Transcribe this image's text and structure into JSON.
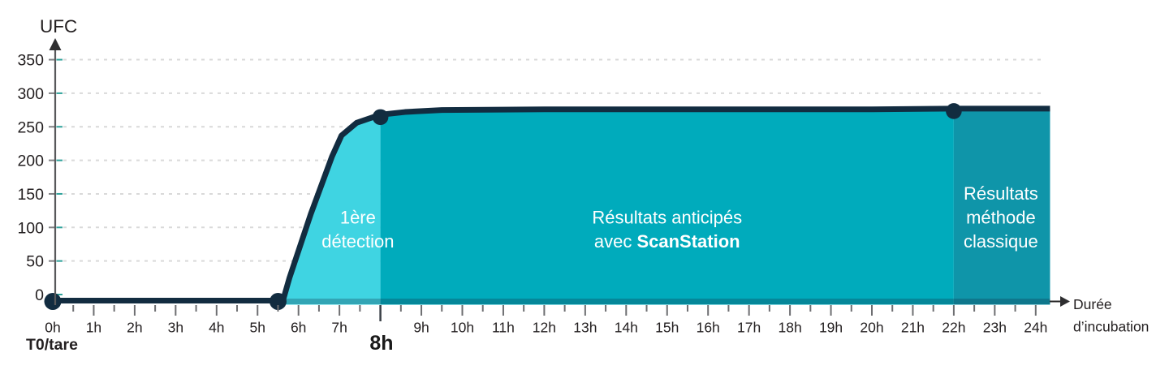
{
  "chart_data": {
    "type": "area",
    "ylabel": "UFC",
    "xlabel_line1": "Durée",
    "xlabel_line2": "d’incubation",
    "origin_label": "T0/tare",
    "detection_time_label": "8h",
    "detection_hour": 8,
    "y_ticks": [
      0,
      50,
      100,
      150,
      200,
      250,
      300,
      350
    ],
    "ylim": [
      0,
      350
    ],
    "xlim_hours": [
      0,
      24.35
    ],
    "x_tick_labels": [
      "0h",
      "1h",
      "2h",
      "3h",
      "4h",
      "5h",
      "6h",
      "7h",
      "8h",
      "9h",
      "10h",
      "11h",
      "12h",
      "13h",
      "14h",
      "15h",
      "16h",
      "17h",
      "18h",
      "19h",
      "20h",
      "21h",
      "22h",
      "23h",
      "24h"
    ],
    "grid": "dashed-horizontal",
    "curve_points": [
      [
        0,
        0
      ],
      [
        5.5,
        0
      ],
      [
        5.62,
        0
      ],
      [
        5.78,
        25
      ],
      [
        6.3,
        120
      ],
      [
        6.82,
        206
      ],
      [
        7.05,
        237
      ],
      [
        7.42,
        256
      ],
      [
        8,
        268
      ],
      [
        8.6,
        272
      ],
      [
        9.5,
        275
      ],
      [
        12,
        276
      ],
      [
        16,
        276
      ],
      [
        20,
        276
      ],
      [
        22,
        277
      ],
      [
        23.2,
        277
      ],
      [
        24.35,
        277
      ]
    ],
    "marked_points": [
      [
        0,
        0
      ],
      [
        5.5,
        0
      ],
      [
        8,
        268
      ],
      [
        22,
        277
      ]
    ],
    "regions": [
      {
        "id": "first-detection",
        "from_hour": 5.55,
        "to_hour": 8,
        "fill": "#3fd4e2",
        "label_center_hour": 7.45,
        "label_lines": [
          [
            {
              "text": "1ère",
              "bold": false
            }
          ],
          [
            {
              "text": "détection",
              "bold": false
            }
          ]
        ]
      },
      {
        "id": "scanstation-anticipated",
        "from_hour": 8,
        "to_hour": 22,
        "fill": "#00abbc",
        "label_center_hour": 15,
        "label_lines": [
          [
            {
              "text": "Résultats anticipés",
              "bold": false
            }
          ],
          [
            {
              "text": "avec ",
              "bold": false
            },
            {
              "text": "ScanStation",
              "bold": true
            }
          ]
        ]
      },
      {
        "id": "classic-method",
        "from_hour": 22,
        "to_hour": 24.35,
        "fill": "#0f95a9",
        "label_center_hour": 23.15,
        "label_lines": [
          [
            {
              "text": "Résultats",
              "bold": false
            }
          ],
          [
            {
              "text": "méthode",
              "bold": false
            }
          ],
          [
            {
              "text": "classique",
              "bold": false
            }
          ]
        ]
      }
    ],
    "colors": {
      "curve": "#122c40",
      "first_detection_fill": "#3fd4e2",
      "scanstation_fill": "#00abbc",
      "classic_fill": "#0f95a9",
      "gridline": "#d9d9d9",
      "axis": "#58595b",
      "tick": "#6d6e71",
      "grid_accent": "#2fa29b",
      "text_dark": "#231f20",
      "region_text": "#ffffff"
    }
  }
}
